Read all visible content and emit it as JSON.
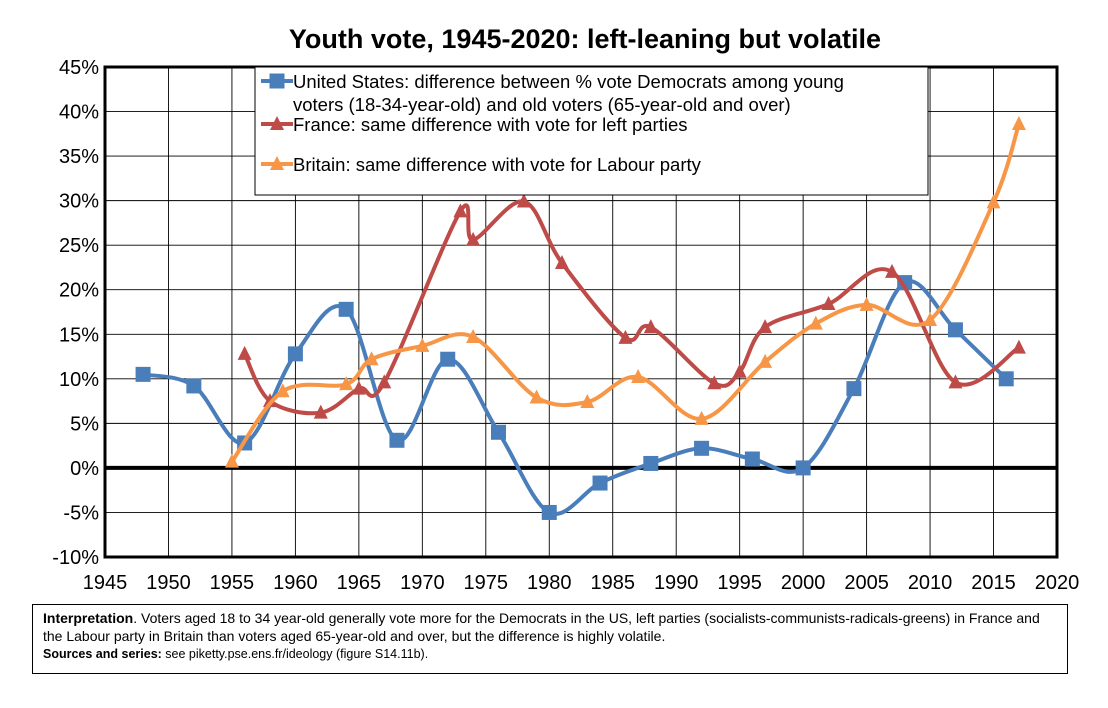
{
  "chart_data": {
    "type": "line",
    "title": "Youth vote, 1945-2020: left-leaning but volatile",
    "xlim": [
      1945,
      2020
    ],
    "ylim": [
      -10,
      45
    ],
    "x_ticks": [
      "1945",
      "1950",
      "1955",
      "1960",
      "1965",
      "1970",
      "1975",
      "1980",
      "1985",
      "1990",
      "1995",
      "2000",
      "2005",
      "2010",
      "2015",
      "2020"
    ],
    "y_ticks": [
      "-10%",
      "-5%",
      "0%",
      "5%",
      "10%",
      "15%",
      "20%",
      "25%",
      "30%",
      "35%",
      "40%",
      "45%"
    ],
    "grid": true,
    "legend_position": "top",
    "series": [
      {
        "name": "United States: difference between % vote Democrats among young voters (18-34-year-old) and old voters (65-year-old and over)",
        "legend_lines": [
          "United States: difference between % vote Democrats among young",
          "voters (18-34-year-old) and old voters (65-year-old and over)"
        ],
        "color": "#4a7ebb",
        "marker": "square",
        "points": [
          [
            1948,
            10.5
          ],
          [
            1952,
            9.2
          ],
          [
            1956,
            2.8
          ],
          [
            1960,
            12.8
          ],
          [
            1964,
            17.8
          ],
          [
            1968,
            3.1
          ],
          [
            1972,
            12.2
          ],
          [
            1976,
            4.0
          ],
          [
            1980,
            -5.0
          ],
          [
            1984,
            -1.7
          ],
          [
            1988,
            0.5
          ],
          [
            1992,
            2.2
          ],
          [
            1996,
            1.0
          ],
          [
            2000,
            0.0
          ],
          [
            2004,
            8.9
          ],
          [
            2008,
            20.8
          ],
          [
            2012,
            15.5
          ],
          [
            2016,
            10.0
          ]
        ]
      },
      {
        "name": "France: same difference with vote for left parties",
        "legend_lines": [
          "France: same difference with vote for left parties"
        ],
        "color": "#be4b48",
        "marker": "triangle",
        "points": [
          [
            1956,
            12.8
          ],
          [
            1958,
            7.5
          ],
          [
            1962,
            6.2
          ],
          [
            1965,
            8.9
          ],
          [
            1967,
            9.6
          ],
          [
            1973,
            28.8
          ],
          [
            1974,
            25.6
          ],
          [
            1978,
            29.9
          ],
          [
            1981,
            23.0
          ],
          [
            1986,
            14.6
          ],
          [
            1988,
            15.8
          ],
          [
            1993,
            9.5
          ],
          [
            1995,
            10.8
          ],
          [
            1997,
            15.8
          ],
          [
            2002,
            18.4
          ],
          [
            2007,
            22.0
          ],
          [
            2012,
            9.6
          ],
          [
            2017,
            13.5
          ]
        ]
      },
      {
        "name": "Britain: same difference with vote for Labour party",
        "legend_lines": [
          "Britain: same difference with vote for Labour party"
        ],
        "color": "#f79646",
        "marker": "triangle",
        "points": [
          [
            1955,
            0.7
          ],
          [
            1959,
            8.6
          ],
          [
            1964,
            9.4
          ],
          [
            1966,
            12.2
          ],
          [
            1970,
            13.7
          ],
          [
            1974,
            14.7
          ],
          [
            1979,
            7.9
          ],
          [
            1983,
            7.4
          ],
          [
            1987,
            10.2
          ],
          [
            1992,
            5.5
          ],
          [
            1997,
            11.9
          ],
          [
            2001,
            16.2
          ],
          [
            2005,
            18.3
          ],
          [
            2010,
            16.6
          ],
          [
            2015,
            29.8
          ],
          [
            2017,
            38.6
          ]
        ]
      }
    ]
  },
  "note": {
    "interpretation_label": "Interpretation",
    "interpretation_text": ". Voters aged 18 to 34 year-old generally vote more for the Democrats in the US, left parties (socialists-communists-radicals-greens) in France and the Labour party in Britain than voters aged 65-year-old and over, but the difference is highly volatile.",
    "sources_label": "Sources and series:",
    "sources_text": " see piketty.pse.ens.fr/ideology (figure S14.11b)."
  }
}
